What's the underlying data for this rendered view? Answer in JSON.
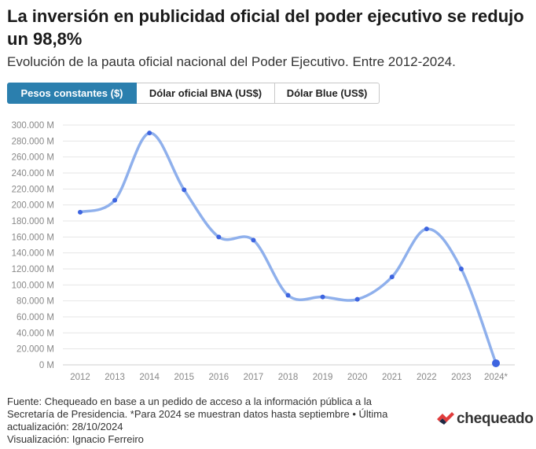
{
  "title": "La inversión en publicidad oficial del poder ejecutivo se redujo un 98,8%",
  "subtitle": "Evolución de la pauta oficial nacional del Poder Ejecutivo. Entre 2012-2024.",
  "tabs": [
    {
      "label": "Pesos constantes ($)",
      "active": true
    },
    {
      "label": "Dólar oficial BNA (US$)",
      "active": false
    },
    {
      "label": "Dólar Blue (US$)",
      "active": false
    }
  ],
  "colors": {
    "accent": "#2b7fae",
    "line": "#8fb0ec",
    "point": "#3d64e0"
  },
  "chart_data": {
    "type": "line",
    "categories": [
      "2012",
      "2013",
      "2014",
      "2015",
      "2016",
      "2017",
      "2018",
      "2019",
      "2020",
      "2021",
      "2022",
      "2023",
      "2024*"
    ],
    "series": [
      {
        "values": [
          191000,
          206000,
          290000,
          219000,
          160000,
          156000,
          87000,
          85000,
          82000,
          110000,
          170000,
          120000,
          2000
        ]
      }
    ],
    "yticks": [
      0,
      20000,
      40000,
      60000,
      80000,
      100000,
      120000,
      140000,
      160000,
      180000,
      200000,
      220000,
      240000,
      260000,
      280000,
      300000
    ],
    "ytick_labels": [
      "0 M",
      "20.000 M",
      "40.000 M",
      "60.000 M",
      "80.000 M",
      "100.000 M",
      "120.000 M",
      "140.000 M",
      "160.000 M",
      "180.000 M",
      "200.000 M",
      "220.000 M",
      "240.000 M",
      "260.000 M",
      "280.000 M",
      "300.000 M"
    ],
    "ylim": [
      0,
      300000
    ],
    "grid": true,
    "legend": "none"
  },
  "footer": {
    "source": "Fuente: Chequeado en base a un pedido de acceso a la información pública a la Secretaría de Presidencia. *Para 2024 se muestran datos hasta septiembre • Última actualización: 28/10/2024",
    "visualization": "Visualización: Ignacio Ferreiro"
  },
  "logo": {
    "text": "chequeado"
  }
}
